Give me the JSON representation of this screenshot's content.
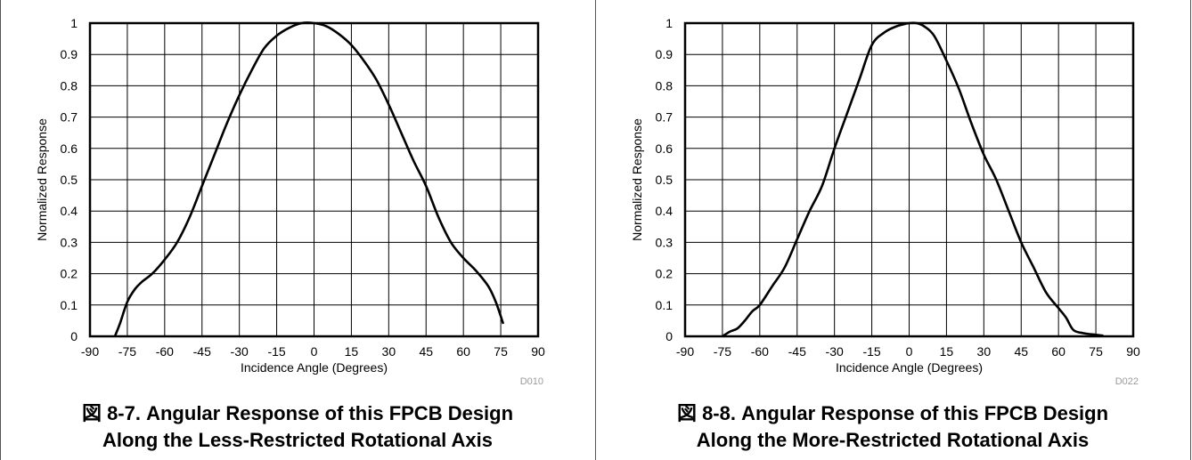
{
  "figures": [
    {
      "figure_number": "図 8-7.",
      "caption_line1": "Angular Response of this FPCB Design",
      "caption_line2": "Along the Less-Restricted Rotational Axis",
      "code": "D010"
    },
    {
      "figure_number": "図 8-8.",
      "caption_line1": "Angular Response of this FPCB Design",
      "caption_line2": "Along the More-Restricted Rotational Axis",
      "code": "D022"
    }
  ],
  "chart_data": [
    {
      "type": "line",
      "xlabel": "Incidence Angle (Degrees)",
      "ylabel": "Normalized Response",
      "xlim": [
        -90,
        90
      ],
      "ylim": [
        0,
        1
      ],
      "x_ticks": [
        "-90",
        "-75",
        "-60",
        "-45",
        "-30",
        "-15",
        "0",
        "15",
        "30",
        "45",
        "60",
        "75",
        "90"
      ],
      "y_ticks": [
        "0",
        "0.1",
        "0.2",
        "0.3",
        "0.4",
        "0.5",
        "0.6",
        "0.7",
        "0.8",
        "0.9",
        "1"
      ],
      "grid": true,
      "series": [
        {
          "x": [
            -80,
            -78,
            -75,
            -72,
            -69,
            -65,
            -60,
            -55,
            -50,
            -45,
            -40,
            -35,
            -30,
            -25,
            -20,
            -15,
            -10,
            -5,
            0,
            5,
            10,
            15,
            20,
            25,
            30,
            35,
            40,
            45,
            50,
            55,
            60,
            65,
            70,
            73,
            76
          ],
          "y": [
            0,
            0.04,
            0.11,
            0.15,
            0.175,
            0.2,
            0.245,
            0.3,
            0.38,
            0.48,
            0.58,
            0.68,
            0.77,
            0.85,
            0.92,
            0.96,
            0.985,
            1.0,
            1.0,
            0.99,
            0.965,
            0.93,
            0.88,
            0.82,
            0.74,
            0.65,
            0.56,
            0.48,
            0.38,
            0.3,
            0.25,
            0.21,
            0.16,
            0.11,
            0.04
          ]
        }
      ]
    },
    {
      "type": "line",
      "xlabel": "Incidence Angle (Degrees)",
      "ylabel": "Normalized Response",
      "xlim": [
        -90,
        90
      ],
      "ylim": [
        0,
        1
      ],
      "x_ticks": [
        "-90",
        "-75",
        "-60",
        "-45",
        "-30",
        "-15",
        "0",
        "15",
        "30",
        "45",
        "60",
        "75",
        "90"
      ],
      "y_ticks": [
        "0",
        "0.1",
        "0.2",
        "0.3",
        "0.4",
        "0.5",
        "0.6",
        "0.7",
        "0.8",
        "0.9",
        "1"
      ],
      "grid": true,
      "series": [
        {
          "x": [
            -75,
            -72,
            -69,
            -66,
            -63,
            -60,
            -55,
            -50,
            -45,
            -40,
            -35,
            -30,
            -25,
            -20,
            -15,
            -10,
            -5,
            0,
            3,
            6,
            10,
            15,
            20,
            25,
            30,
            35,
            40,
            45,
            50,
            55,
            60,
            63,
            66,
            70,
            75,
            78
          ],
          "y": [
            0,
            0.015,
            0.025,
            0.05,
            0.08,
            0.1,
            0.16,
            0.22,
            0.31,
            0.4,
            0.48,
            0.6,
            0.71,
            0.82,
            0.93,
            0.97,
            0.99,
            1.0,
            1.0,
            0.99,
            0.96,
            0.88,
            0.79,
            0.68,
            0.58,
            0.5,
            0.4,
            0.3,
            0.22,
            0.14,
            0.09,
            0.06,
            0.02,
            0.01,
            0.005,
            0.002
          ]
        }
      ]
    }
  ]
}
